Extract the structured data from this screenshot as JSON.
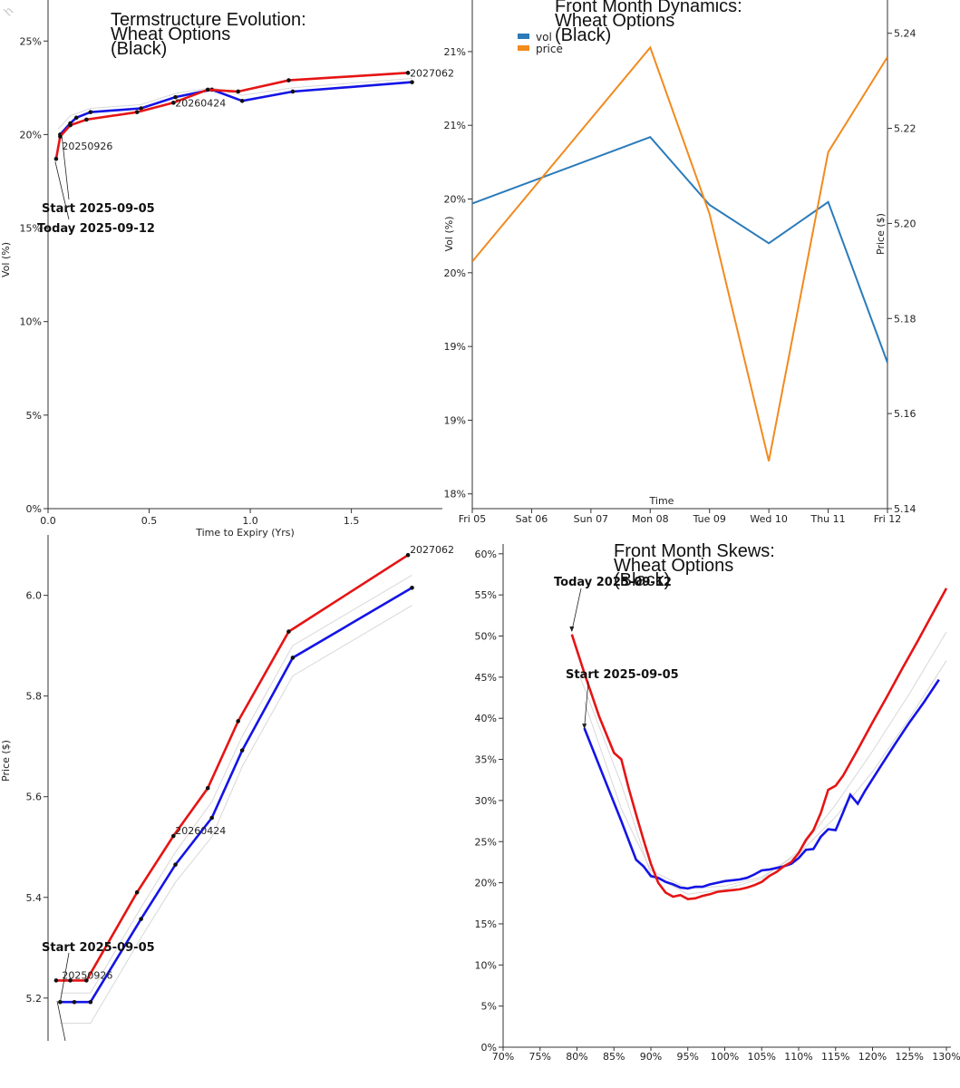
{
  "watermark": "h",
  "colors": {
    "start": "#1414e6",
    "today": "#e61414",
    "vol": "#2b7bba",
    "price": "#f28a1e",
    "ghost": "#d8d8d8"
  },
  "chart_data": [
    {
      "id": "ts_vol",
      "type": "line",
      "title": [
        "Termstructure Evolution:",
        "Wheat Options",
        "(Black)"
      ],
      "xlabel": "Time to Expiry (Yrs)",
      "ylabel": "Vol (%)",
      "xlim": [
        0,
        1.95
      ],
      "ylim": [
        0,
        27
      ],
      "xticks": [
        0,
        0.5,
        1.0,
        1.5
      ],
      "xtick_labels": [
        "0.0",
        "0.5",
        "1.0",
        "1.5"
      ],
      "yticks": [
        0,
        5,
        10,
        15,
        20,
        25
      ],
      "ytick_labels": [
        "0%",
        "5%",
        "10%",
        "15%",
        "20%",
        "25%"
      ],
      "series": [
        {
          "name": "Start 2025-09-05",
          "role": "start",
          "x": [
            0.06,
            0.11,
            0.14,
            0.21,
            0.46,
            0.63,
            0.81,
            0.96,
            1.21,
            1.8
          ],
          "y": [
            20.0,
            20.6,
            20.9,
            21.2,
            21.4,
            22.0,
            22.4,
            21.8,
            22.3,
            22.8
          ]
        },
        {
          "name": "Today 2025-09-12",
          "role": "today",
          "x": [
            0.04,
            0.06,
            0.11,
            0.19,
            0.44,
            0.62,
            0.79,
            0.94,
            1.19,
            1.78
          ],
          "y": [
            18.7,
            19.9,
            20.5,
            20.8,
            21.2,
            21.7,
            22.4,
            22.3,
            22.9,
            23.3
          ]
        }
      ],
      "ghost_series": [
        {
          "x": [
            0.05,
            0.11,
            0.21,
            0.46,
            0.63,
            0.81,
            0.96,
            1.21,
            1.8
          ],
          "y": [
            20.3,
            21.0,
            21.4,
            21.6,
            22.2,
            22.5,
            22.1,
            22.5,
            23.0
          ]
        }
      ],
      "point_labels": [
        {
          "text": "20250926",
          "x": 0.06,
          "y": 19.4
        },
        {
          "text": "20260424",
          "x": 0.62,
          "y": 21.7
        },
        {
          "text": "2027062",
          "x": 1.78,
          "y": 23.3
        }
      ],
      "annotations": [
        {
          "text": "Start 2025-09-05",
          "x": 0.06,
          "y": 20.0
        },
        {
          "text": "Today 2025-09-12",
          "x": 0.04,
          "y": 18.7
        }
      ]
    },
    {
      "id": "front_dyn",
      "type": "line",
      "title": [
        "Front Month Dynamics:",
        "Wheat Options",
        "(Black)"
      ],
      "xlabel": "Time",
      "ylabel": "Vol (%)",
      "ylabel_right": "Price ($)",
      "categories": [
        "Fri 05",
        "Sat 06",
        "Sun 07",
        "Mon 08",
        "Tue 09",
        "Wed 10",
        "Thu 11",
        "Fri 12"
      ],
      "ylim": [
        18.4,
        21.85
      ],
      "yticks": [
        18.5,
        19.0,
        19.5,
        20.0,
        20.5,
        21.0,
        21.5
      ],
      "ytick_labels": [
        "18%",
        "19%",
        "19%",
        "20%",
        "20%",
        "21%",
        "21%"
      ],
      "ylim_right": [
        5.14,
        5.247
      ],
      "yticks_right": [
        5.14,
        5.16,
        5.18,
        5.2,
        5.22,
        5.24
      ],
      "ytick_labels_right": [
        "5.14",
        "5.16",
        "5.18",
        "5.20",
        "5.22",
        "5.24"
      ],
      "legend": [
        "vol",
        "price"
      ],
      "legend_position": "top-left",
      "series": [
        {
          "name": "vol",
          "axis": "left",
          "x": [
            0,
            3,
            4,
            5,
            6,
            7
          ],
          "y": [
            20.47,
            20.92,
            20.46,
            20.2,
            20.48,
            19.39
          ]
        },
        {
          "name": "price",
          "axis": "right",
          "x": [
            0,
            3,
            4,
            5,
            6,
            7
          ],
          "y": [
            5.192,
            5.237,
            5.202,
            5.15,
            5.215,
            5.235
          ]
        }
      ]
    },
    {
      "id": "ts_price",
      "type": "line",
      "title": [],
      "xlabel": "",
      "ylabel": "Price ($)",
      "xlim": [
        0,
        1.95
      ],
      "ylim": [
        5.115,
        6.12
      ],
      "yticks": [
        5.2,
        5.4,
        5.6,
        5.8,
        6.0
      ],
      "ytick_labels": [
        "5.2",
        "5.4",
        "5.6",
        "5.8",
        "6.0"
      ],
      "series": [
        {
          "name": "Start 2025-09-05",
          "role": "start",
          "x": [
            0.06,
            0.13,
            0.21,
            0.46,
            0.63,
            0.81,
            0.96,
            1.21,
            1.8
          ],
          "y": [
            5.192,
            5.192,
            5.192,
            5.357,
            5.465,
            5.558,
            5.692,
            5.876,
            6.015
          ]
        },
        {
          "name": "Today 2025-09-12",
          "role": "today",
          "x": [
            0.04,
            0.11,
            0.19,
            0.44,
            0.62,
            0.79,
            0.94,
            1.19,
            1.78
          ],
          "y": [
            5.235,
            5.235,
            5.235,
            5.41,
            5.522,
            5.617,
            5.75,
            5.928,
            6.08
          ]
        }
      ],
      "ghost_series": [
        {
          "x": [
            0.06,
            0.21,
            0.46,
            0.63,
            0.81,
            0.96,
            1.21,
            1.8
          ],
          "y": [
            5.15,
            5.15,
            5.32,
            5.43,
            5.52,
            5.66,
            5.84,
            5.98
          ]
        },
        {
          "x": [
            0.06,
            0.21,
            0.46,
            0.63,
            0.81,
            0.96,
            1.21,
            1.8
          ],
          "y": [
            5.21,
            5.21,
            5.38,
            5.49,
            5.59,
            5.72,
            5.9,
            6.04
          ]
        }
      ],
      "point_labels": [
        {
          "text": "20250926",
          "x": 0.06,
          "y": 5.235
        },
        {
          "text": "20260424",
          "x": 0.62,
          "y": 5.522
        },
        {
          "text": "2027062",
          "x": 1.78,
          "y": 6.08
        }
      ],
      "annotations": [
        {
          "text": "Start 2025-09-05",
          "x": 0.06,
          "y": 5.192
        }
      ]
    },
    {
      "id": "skew",
      "type": "line",
      "title": [
        "Front Month Skews:",
        "Wheat Options",
        "(Black)"
      ],
      "xlabel": "",
      "ylabel": "",
      "xlim": [
        70,
        130
      ],
      "ylim": [
        0,
        61
      ],
      "xticks": [
        70,
        75,
        80,
        85,
        90,
        95,
        100,
        105,
        110,
        115,
        120,
        125,
        130
      ],
      "xtick_labels": [
        "70%",
        "75%",
        "80%",
        "85%",
        "90%",
        "95%",
        "100%",
        "105%",
        "110%",
        "115%",
        "120%",
        "125%",
        "130%"
      ],
      "yticks": [
        0,
        5,
        10,
        15,
        20,
        25,
        30,
        35,
        40,
        45,
        50,
        55,
        60
      ],
      "ytick_labels": [
        "0%",
        "5%",
        "10%",
        "15%",
        "20%",
        "25%",
        "30%",
        "35%",
        "40%",
        "45%",
        "50%",
        "55%",
        "60%"
      ],
      "series": [
        {
          "name": "Start 2025-09-05",
          "role": "start",
          "x": [
            81,
            84,
            86,
            88,
            89,
            90,
            91,
            92,
            93,
            94,
            95,
            96,
            97,
            98,
            99,
            100,
            101,
            102,
            103,
            104,
            105,
            106,
            107,
            108,
            109,
            110,
            111,
            112,
            113,
            114,
            115,
            116,
            117,
            118,
            119,
            121,
            123,
            125,
            127,
            129
          ],
          "y": [
            38.8,
            32.0,
            27.5,
            22.8,
            22.0,
            20.8,
            20.6,
            20.1,
            19.8,
            19.4,
            19.3,
            19.5,
            19.5,
            19.8,
            20.0,
            20.2,
            20.3,
            20.4,
            20.6,
            21.0,
            21.5,
            21.6,
            21.8,
            22.0,
            22.3,
            23.0,
            24.0,
            24.1,
            25.6,
            26.5,
            26.4,
            28.5,
            30.7,
            29.6,
            31.2,
            34.0,
            36.8,
            39.5,
            42.0,
            44.7
          ]
        },
        {
          "name": "Today 2025-09-12",
          "role": "today",
          "x": [
            79.3,
            81,
            83,
            85,
            86,
            87,
            88,
            89,
            90,
            91,
            92,
            93,
            94,
            95,
            96,
            97,
            98,
            99,
            100,
            101,
            102,
            103,
            104,
            105,
            106,
            107,
            108,
            109,
            110,
            111,
            112,
            113,
            114,
            115,
            116,
            118,
            120,
            122,
            124,
            126,
            128,
            130
          ],
          "y": [
            50.2,
            45.5,
            40.2,
            35.8,
            35.0,
            31.5,
            28.3,
            25.2,
            22.3,
            20.0,
            18.8,
            18.3,
            18.5,
            18.0,
            18.1,
            18.4,
            18.6,
            18.9,
            19.0,
            19.1,
            19.2,
            19.4,
            19.7,
            20.1,
            20.8,
            21.3,
            22.0,
            22.5,
            23.6,
            25.2,
            26.4,
            28.5,
            31.3,
            31.8,
            33.0,
            36.2,
            39.5,
            42.7,
            46.0,
            49.2,
            52.5,
            55.8
          ]
        }
      ],
      "ghost_series": [
        {
          "x": [
            81,
            86,
            90,
            95,
            100,
            105,
            110,
            115,
            120,
            125,
            130
          ],
          "y": [
            42,
            29,
            21.5,
            19.3,
            19.6,
            20.7,
            23.5,
            28,
            33.5,
            40,
            47
          ]
        },
        {
          "x": [
            80,
            86,
            90,
            95,
            100,
            105,
            110,
            115,
            120,
            125,
            130
          ],
          "y": [
            46,
            32,
            21,
            18.6,
            19.2,
            20.5,
            23.8,
            29.5,
            36,
            43,
            50.5
          ]
        }
      ],
      "annotations": [
        {
          "text": "Today 2025-09-12",
          "x": 79.3,
          "y": 50.6
        },
        {
          "text": "Start 2025-09-05",
          "x": 81,
          "y": 38.8
        }
      ]
    }
  ]
}
